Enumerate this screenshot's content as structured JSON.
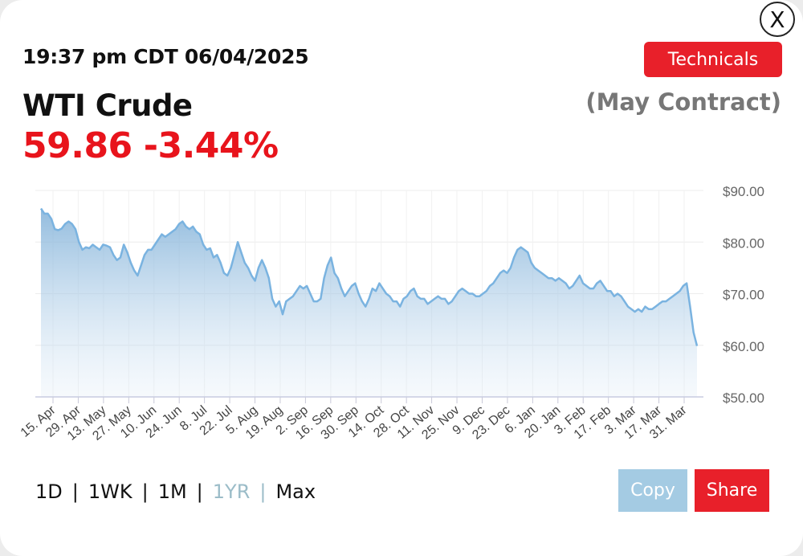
{
  "header": {
    "close_label": "X",
    "timestamp": "19:37 pm CDT 06/04/2025",
    "technicals_label": "Technicals",
    "instrument": "WTI Crude",
    "contract": "(May Contract)",
    "price": "59.86",
    "change": "-3.44%"
  },
  "colors": {
    "accent_red": "#e8202a",
    "line_blue": "#7ab3e0",
    "copy_blue": "#a4cbe3"
  },
  "ranges": {
    "items": [
      "1D",
      "1WK",
      "1M",
      "1YR",
      "Max"
    ],
    "active": "1YR"
  },
  "actions": {
    "copy_label": "Copy",
    "share_label": "Share"
  },
  "chart_data": {
    "type": "area",
    "ylim": [
      50,
      90
    ],
    "y_tick_values": [
      50,
      60,
      70,
      80,
      90
    ],
    "y_tick_labels": [
      "$50.00",
      "$60.00",
      "$70.00",
      "$80.00",
      "$90.00"
    ],
    "y_axis_side": "right",
    "grid": true,
    "x_tick_labels": [
      "15. Apr",
      "29. Apr",
      "13. May",
      "27. May",
      "10. Jun",
      "24. Jun",
      "8. Jul",
      "22. Jul",
      "5. Aug",
      "19. Aug",
      "2. Sep",
      "16. Sep",
      "30. Sep",
      "14. Oct",
      "28. Oct",
      "11. Nov",
      "25. Nov",
      "9. Dec",
      "23. Dec",
      "6. Jan",
      "20. Jan",
      "3. Feb",
      "17. Feb",
      "3. Mar",
      "17. Mar",
      "31. Mar"
    ],
    "series": [
      {
        "values": [
          86.5,
          85.5,
          85.5,
          84.5,
          82.5,
          82.3,
          82.6,
          83.5,
          84,
          83.5,
          82.5,
          80,
          78.5,
          79,
          78.8,
          79.5,
          79,
          78.5,
          79.5,
          79.3,
          79,
          77.5,
          76.5,
          77,
          79.5,
          78,
          76,
          74.5,
          73.5,
          75.5,
          77.5,
          78.5,
          78.5,
          79.5,
          80.5,
          81.5,
          81,
          81.5,
          82,
          82.5,
          83.5,
          84,
          83,
          82.5,
          83,
          82,
          81.5,
          79.5,
          78.5,
          78.8,
          77,
          77.5,
          76,
          74,
          73.5,
          75,
          77.5,
          80,
          78,
          76,
          75,
          73.5,
          72.5,
          75,
          76.5,
          75,
          73,
          69,
          67.5,
          68.5,
          66,
          68.5,
          69,
          69.5,
          70.5,
          71.5,
          71,
          71.5,
          70,
          68.5,
          68.5,
          69,
          73,
          75.5,
          77,
          74,
          73,
          71,
          69.5,
          70.5,
          71.5,
          72,
          70,
          68.5,
          67.5,
          69,
          71,
          70.5,
          72,
          71,
          70,
          69.5,
          68.5,
          68.5,
          67.5,
          69,
          69.5,
          70.5,
          71,
          69.5,
          69,
          69,
          68,
          68.5,
          69,
          69.5,
          69,
          69,
          68,
          68.5,
          69.5,
          70.5,
          71,
          70.5,
          70,
          70,
          69.5,
          69.5,
          70,
          70.5,
          71.5,
          72,
          73,
          74,
          74.5,
          74,
          75,
          77,
          78.5,
          79,
          78.5,
          78,
          76,
          75,
          74.5,
          74,
          73.5,
          73,
          73,
          72.5,
          73,
          72.5,
          72,
          71,
          71.5,
          72.5,
          73.5,
          72,
          71.5,
          71,
          71,
          72,
          72.5,
          71.5,
          70.5,
          70.5,
          69.5,
          70,
          69.5,
          68.5,
          67.5,
          67,
          66.5,
          67,
          66.5,
          67.5,
          67,
          67,
          67.5,
          68,
          68.5,
          68.5,
          69,
          69.5,
          70,
          70.5,
          71.5,
          72,
          67.5,
          62.5,
          59.86
        ]
      }
    ]
  }
}
